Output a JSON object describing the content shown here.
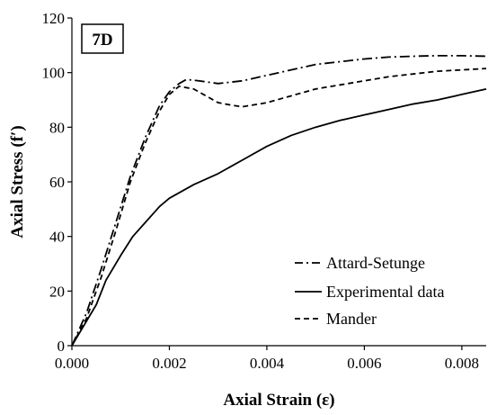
{
  "chart_data": {
    "type": "line",
    "panel_label": "7D",
    "xlabel": "Axial Strain (ε)",
    "ylabel": "Axial Stress (f′)",
    "xlim": [
      0,
      0.0085
    ],
    "ylim": [
      0,
      120
    ],
    "x_ticks": [
      "0.000",
      "0.002",
      "0.004",
      "0.006",
      "0.008"
    ],
    "y_ticks": [
      "0",
      "20",
      "40",
      "60",
      "80",
      "100",
      "120"
    ],
    "grid": false,
    "legend_position": "bottom-right",
    "series": [
      {
        "name": "Attard-Setunge",
        "line_style": "dash-dot",
        "color": "#000000",
        "points": [
          [
            0,
            0
          ],
          [
            0.0003,
            12
          ],
          [
            0.0006,
            28
          ],
          [
            0.0009,
            45
          ],
          [
            0.0012,
            62
          ],
          [
            0.0015,
            76
          ],
          [
            0.0018,
            88
          ],
          [
            0.002,
            93
          ],
          [
            0.0022,
            96
          ],
          [
            0.00235,
            97.5
          ],
          [
            0.0026,
            97
          ],
          [
            0.003,
            96
          ],
          [
            0.0035,
            97
          ],
          [
            0.004,
            99
          ],
          [
            0.0045,
            101
          ],
          [
            0.005,
            103
          ],
          [
            0.0055,
            104
          ],
          [
            0.006,
            105
          ],
          [
            0.0065,
            105.7
          ],
          [
            0.007,
            106
          ],
          [
            0.0075,
            106.2
          ],
          [
            0.008,
            106.2
          ],
          [
            0.0085,
            106
          ]
        ]
      },
      {
        "name": "Experimental data",
        "line_style": "solid",
        "color": "#000000",
        "points": [
          [
            0,
            0
          ],
          [
            0.0002,
            6
          ],
          [
            0.0005,
            15
          ],
          [
            0.0007,
            24
          ],
          [
            0.001,
            33
          ],
          [
            0.00125,
            40
          ],
          [
            0.0015,
            45
          ],
          [
            0.0018,
            51
          ],
          [
            0.002,
            54
          ],
          [
            0.0025,
            59
          ],
          [
            0.003,
            63
          ],
          [
            0.0035,
            68
          ],
          [
            0.004,
            73
          ],
          [
            0.0045,
            77
          ],
          [
            0.005,
            80
          ],
          [
            0.0055,
            82.5
          ],
          [
            0.006,
            84.5
          ],
          [
            0.0065,
            86.5
          ],
          [
            0.007,
            88.5
          ],
          [
            0.0075,
            90
          ],
          [
            0.008,
            92
          ],
          [
            0.0085,
            94
          ]
        ]
      },
      {
        "name": "Mander",
        "line_style": "dashed",
        "color": "#000000",
        "points": [
          [
            0,
            0
          ],
          [
            0.0003,
            10
          ],
          [
            0.0006,
            25
          ],
          [
            0.0009,
            42
          ],
          [
            0.0012,
            60
          ],
          [
            0.0015,
            74
          ],
          [
            0.0018,
            86
          ],
          [
            0.002,
            92
          ],
          [
            0.0022,
            95
          ],
          [
            0.0025,
            94
          ],
          [
            0.0028,
            91
          ],
          [
            0.003,
            89
          ],
          [
            0.0033,
            88
          ],
          [
            0.0035,
            87.5
          ],
          [
            0.004,
            89
          ],
          [
            0.0045,
            91.5
          ],
          [
            0.005,
            94
          ],
          [
            0.0055,
            95.5
          ],
          [
            0.006,
            97
          ],
          [
            0.0065,
            98.5
          ],
          [
            0.007,
            99.5
          ],
          [
            0.0075,
            100.5
          ],
          [
            0.008,
            101
          ],
          [
            0.0085,
            101.5
          ]
        ]
      }
    ]
  }
}
